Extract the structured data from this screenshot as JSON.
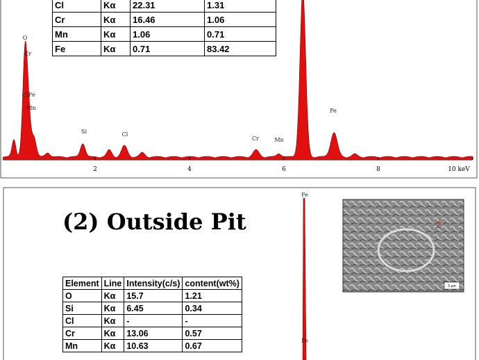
{
  "panel1": {
    "table": {
      "rows": [
        [
          "Cl",
          "Kα",
          "22.31",
          "1.31"
        ],
        [
          "Cr",
          "Kα",
          "16.46",
          "1.06"
        ],
        [
          "Mn",
          "Kα",
          "1.06",
          "0.71"
        ],
        [
          "Fe",
          "Kα",
          "0.71",
          "83.42"
        ]
      ]
    },
    "axis_labels": [
      "2",
      "4",
      "6",
      "8",
      "10 keV"
    ],
    "peak_labels": [
      "O",
      "Cr",
      "Cl",
      "Fe",
      "Mn",
      "Si",
      "Cl",
      "Cr",
      "Mn",
      "Fe"
    ]
  },
  "panel2": {
    "title": "(2) Outside Pit",
    "table": {
      "header": [
        "Element",
        "Line",
        "Intensity(c/s)",
        "content(wt%)"
      ],
      "rows": [
        [
          "O",
          "Kα",
          "15.7",
          "1.21"
        ],
        [
          "Si",
          "Kα",
          "6.45",
          "0.34"
        ],
        [
          "Cl",
          "Kα",
          "-",
          "-"
        ],
        [
          "Cr",
          "Kα",
          "13.06",
          "0.57"
        ],
        [
          "Mn",
          "Kα",
          "10.63",
          "0.67"
        ]
      ]
    },
    "peak_labels": [
      "Fe",
      "Fe"
    ],
    "image_marker": "2",
    "scale_bar": "5 µm"
  }
}
